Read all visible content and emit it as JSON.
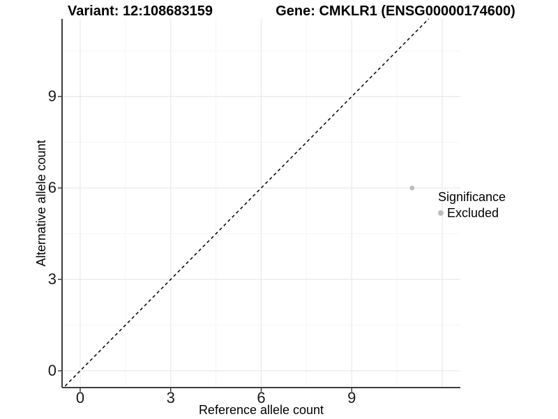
{
  "figure": {
    "titles": {
      "left": "Variant: 12:108683159",
      "right": "Gene: CMKLR1 (ENSG00000174600)"
    }
  },
  "chart_data": {
    "type": "scatter",
    "xlabel": "Reference allele count",
    "ylabel": "Alternative allele count",
    "xlim": [
      -0.6,
      12.6
    ],
    "ylim": [
      -0.55,
      11.55
    ],
    "x_ticks": [
      0,
      3,
      6,
      9
    ],
    "y_ticks": [
      0,
      3,
      6,
      9
    ],
    "x_major_grid": [
      0,
      3,
      6,
      9,
      12
    ],
    "y_major_grid": [
      0,
      3,
      6,
      9
    ],
    "x_minor_grid": [
      1.5,
      4.5,
      7.5,
      10.5
    ],
    "y_minor_grid": [
      1.5,
      4.5,
      7.5,
      10.5
    ],
    "grid": true,
    "points": [
      {
        "x": 11,
        "y": 6,
        "significance": "Excluded",
        "color": "#bebebe"
      }
    ],
    "reference_line": {
      "slope": 1,
      "intercept": 0,
      "style": "dashed",
      "color": "#000000"
    },
    "legend": {
      "title": "Significance",
      "position": "right",
      "entries": [
        {
          "label": "Excluded",
          "color": "#bebebe"
        }
      ]
    }
  },
  "style": {
    "axis_color": "#3d3d3d",
    "grid_major_color": "#e9e9e9",
    "grid_minor_color": "#f5f5f5",
    "point_color": "#bebebe"
  }
}
